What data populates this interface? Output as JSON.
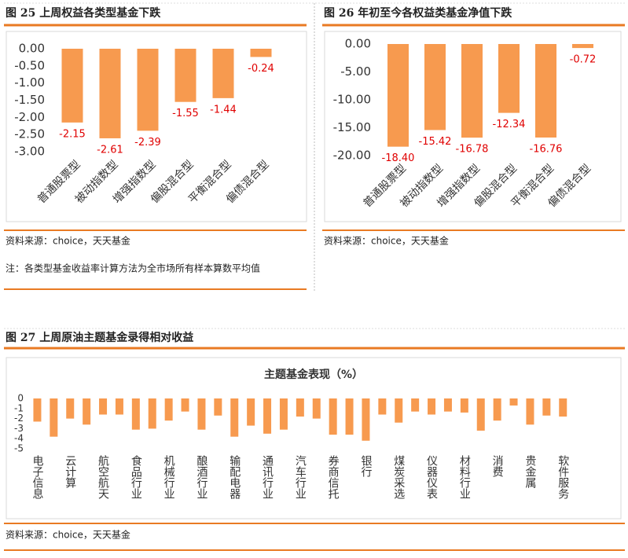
{
  "chart_data": [
    {
      "type": "bar",
      "caption": "图 25  上周权益各类型基金下跌",
      "source": "资料来源：choice，天天基金",
      "note": "注：各类型基金收益率计算方法为全市场所有样本算数平均值",
      "categories": [
        "普通股票型",
        "被动指数型",
        "增强指数型",
        "偏股混合型",
        "平衡混合型",
        "偏债混合型"
      ],
      "values": [
        -2.15,
        -2.61,
        -2.39,
        -1.55,
        -1.44,
        -0.24
      ],
      "color": "#f79a4f",
      "label_color": "#e00000",
      "ylim": [
        -3,
        0
      ],
      "yticks": [
        {
          "value": 0,
          "label": "0.00"
        },
        {
          "value": -0.5,
          "label": "-0.50"
        },
        {
          "value": -1,
          "label": "-1.00"
        },
        {
          "value": -1.5,
          "label": "-1.50"
        },
        {
          "value": -2,
          "label": "-2.00"
        },
        {
          "value": -2.5,
          "label": "-2.50"
        },
        {
          "value": -3,
          "label": "-3.00"
        }
      ],
      "grid": false
    },
    {
      "type": "bar",
      "caption": "图 26  年初至今各权益类基金净值下跌",
      "source": "资料来源：choice，天天基金",
      "categories": [
        "普通股票型",
        "被动指数型",
        "增强指数型",
        "偏股混合型",
        "平衡混合型",
        "偏债混合型"
      ],
      "values": [
        -18.4,
        -15.42,
        -16.78,
        -12.34,
        -16.76,
        -0.72
      ],
      "value_labels": [
        "-18.40",
        "-15.42",
        "-16.78",
        "-12.34",
        "-16.76",
        "-0.72"
      ],
      "color": "#f79a4f",
      "label_color": "#e00000",
      "ylim": [
        -20,
        0
      ],
      "yticks": [
        {
          "value": 0,
          "label": "0.00"
        },
        {
          "value": -5,
          "label": "-5.00"
        },
        {
          "value": -10,
          "label": "-10.00"
        },
        {
          "value": -15,
          "label": "-15.00"
        },
        {
          "value": -20,
          "label": "-20.00"
        }
      ],
      "grid": false
    },
    {
      "type": "bar",
      "caption": "图 27  上周原油主题基金录得相对收益",
      "title": "主题基金表现（%）",
      "source": "资料来源：choice，天天基金",
      "categories": [
        "电子信息",
        null,
        "云计算",
        null,
        "航空航天",
        null,
        "食品行业",
        null,
        "机械行业",
        null,
        "酿酒行业",
        null,
        "输配电器",
        null,
        "通讯行业",
        null,
        "汽车行业",
        null,
        "券商信托",
        null,
        "银行",
        null,
        "煤炭采选",
        null,
        "仪器仪表",
        null,
        "材料行业",
        null,
        "消费",
        null,
        "贵金属",
        null,
        "软件服务"
      ],
      "values": [
        -2.3,
        -3.8,
        -2.0,
        -2.6,
        -1.6,
        -1.6,
        -3.1,
        -3.0,
        -2.2,
        -1.3,
        -3.1,
        -1.7,
        -3.8,
        -2.7,
        -3.5,
        -3.1,
        -1.8,
        -2.0,
        -3.6,
        -3.6,
        -4.2,
        -1.6,
        -2.4,
        -1.3,
        -1.6,
        -1.3,
        -1.4,
        -3.2,
        -2.2,
        -0.7,
        -2.6,
        -1.7,
        -1.8
      ],
      "color": "#f79a4f",
      "ylim": [
        -5,
        0
      ],
      "yticks": [
        0,
        -1,
        -2,
        -3,
        -4,
        -5
      ],
      "grid": false
    }
  ]
}
